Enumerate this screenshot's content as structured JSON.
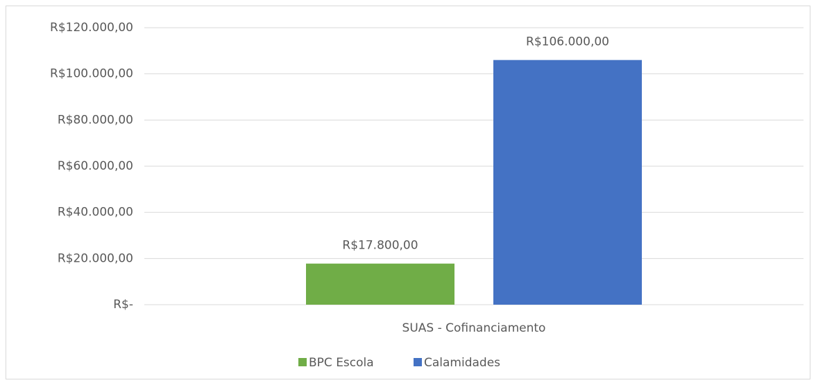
{
  "chart_data": {
    "type": "bar",
    "categories": [
      "SUAS - Cofinanciamento"
    ],
    "series": [
      {
        "name": "BPC Escola",
        "color": "#70ad47",
        "values": [
          17800
        ],
        "value_labels": [
          "R$17.800,00"
        ]
      },
      {
        "name": "Calamidades",
        "color": "#4472c4",
        "values": [
          106000
        ],
        "value_labels": [
          "R$106.000,00"
        ]
      }
    ],
    "ylim": [
      0,
      120000
    ],
    "yticks": [
      {
        "value": 0,
        "label": "R$-"
      },
      {
        "value": 20000,
        "label": "R$20.000,00"
      },
      {
        "value": 40000,
        "label": "R$40.000,00"
      },
      {
        "value": 60000,
        "label": "R$60.000,00"
      },
      {
        "value": 80000,
        "label": "R$80.000,00"
      },
      {
        "value": 100000,
        "label": "R$100.000,00"
      },
      {
        "value": 120000,
        "label": "R$120.000,00"
      }
    ],
    "grid": true,
    "legend": "bottom"
  }
}
